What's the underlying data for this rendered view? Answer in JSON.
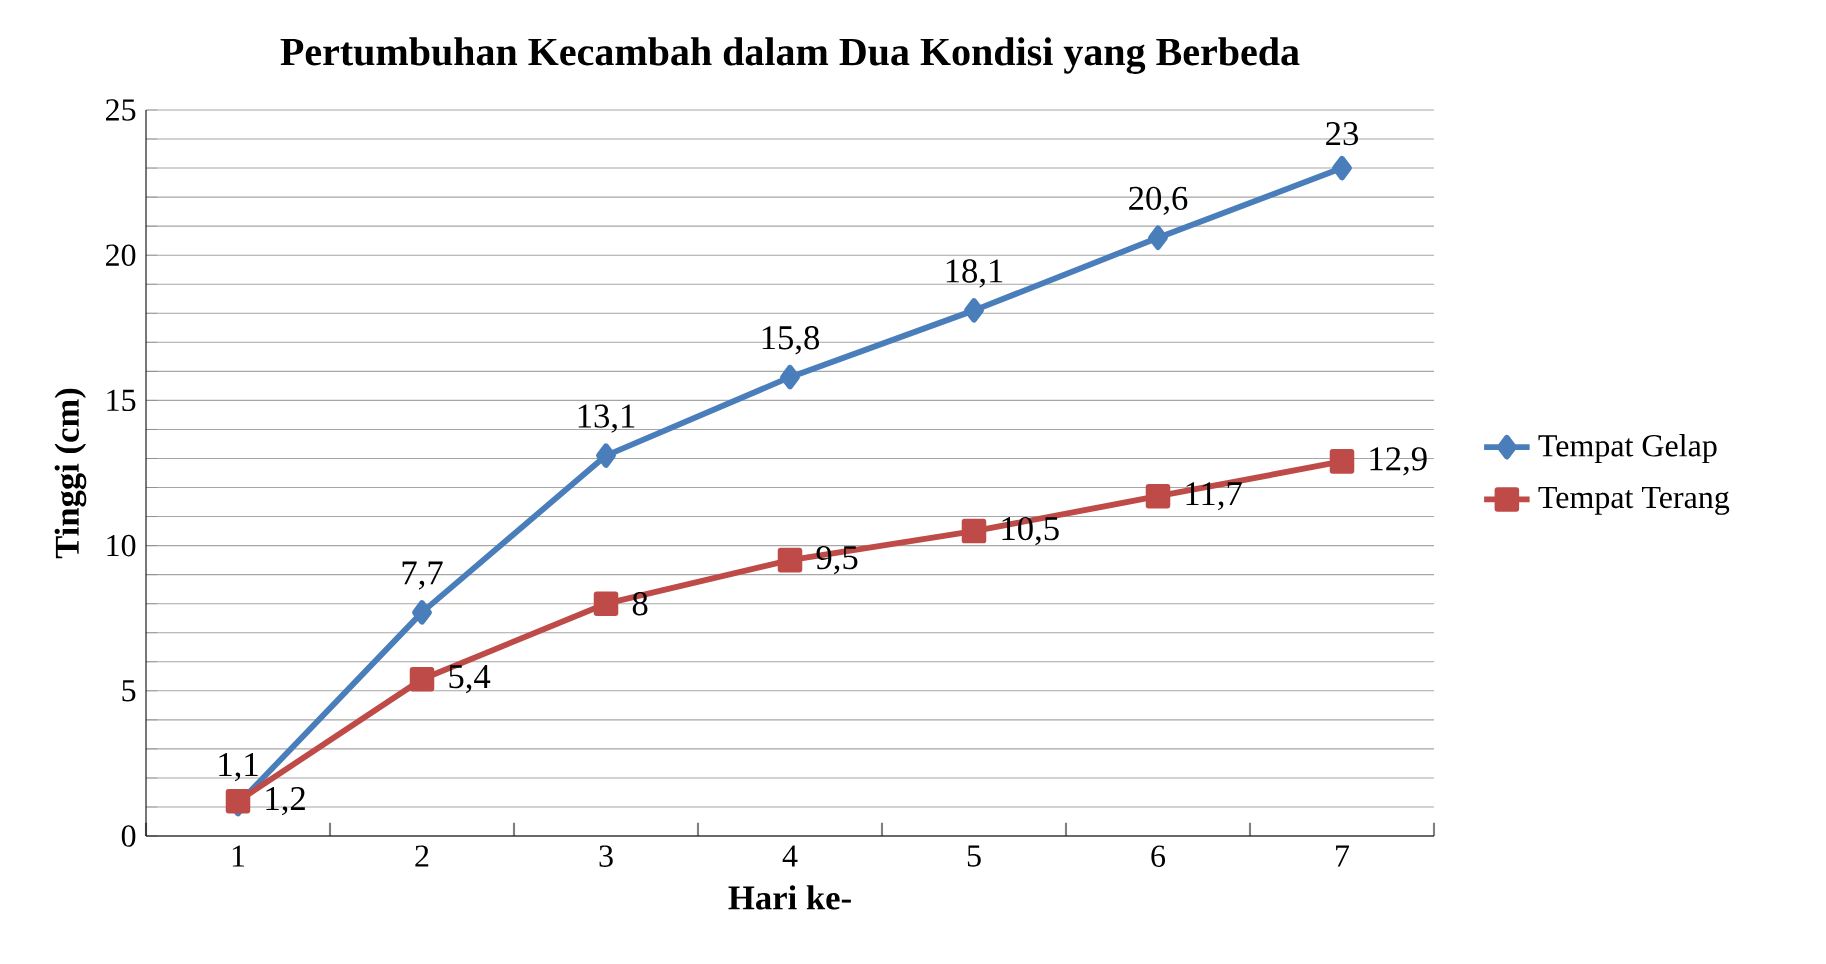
{
  "chart_data": {
    "type": "line",
    "title": "Pertumbuhan Kecambah dalam Dua Kondisi yang Berbeda",
    "xlabel": "Hari ke-",
    "ylabel": "Tinggi (cm)",
    "categories": [
      "1",
      "2",
      "3",
      "4",
      "5",
      "6",
      "7"
    ],
    "series": [
      {
        "name": "Tempat Gelap",
        "color": "#4a7ebb",
        "marker": "diamond",
        "values": [
          1.1,
          7.7,
          13.1,
          15.8,
          18.1,
          20.6,
          23
        ],
        "value_labels": [
          "1,1",
          "7,7",
          "13,1",
          "15,8",
          "18,1",
          "20,6",
          "23"
        ]
      },
      {
        "name": "Tempat Terang",
        "color": "#be4b48",
        "marker": "square",
        "values": [
          1.2,
          5.4,
          8,
          9.5,
          10.5,
          11.7,
          12.9
        ],
        "value_labels": [
          "1,2",
          "5,4",
          "8",
          "9,5",
          "10,5",
          "11,7",
          "12,9"
        ]
      }
    ],
    "ylim": [
      0,
      25
    ],
    "yticks": [
      0,
      {
        "value": 1,
        "label": null
      },
      {
        "value": 2,
        "label": null
      },
      {
        "value": 3,
        "label": null
      },
      {
        "value": 4,
        "label": null
      },
      5,
      {
        "value": 6,
        "label": null
      },
      {
        "value": 7,
        "label": null
      },
      {
        "value": 8,
        "label": null
      },
      {
        "value": 9,
        "label": null
      },
      10,
      {
        "value": 11,
        "label": null
      },
      {
        "value": 12,
        "label": null
      },
      {
        "value": 13,
        "label": null
      },
      {
        "value": 14,
        "label": null
      },
      15,
      {
        "value": 16,
        "label": null
      },
      {
        "value": 17,
        "label": null
      },
      {
        "value": 18,
        "label": null
      },
      {
        "value": 19,
        "label": null
      },
      20,
      {
        "value": 21,
        "label": null
      },
      {
        "value": 22,
        "label": null
      },
      {
        "value": 23,
        "label": null
      },
      {
        "value": 24,
        "label": null
      },
      25
    ],
    "grid": "y",
    "legend": "right",
    "line_style": "solid"
  }
}
